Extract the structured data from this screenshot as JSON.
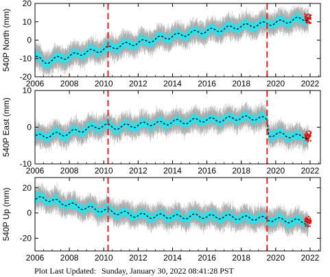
{
  "footer": {
    "label": "Plot Last Updated:",
    "timestamp": "Sunday, January 30, 2022 08:41:28 PST"
  },
  "colors": {
    "data_point": "#22e5f2",
    "error_bar": "#a9a9a9",
    "recent_point": "#e01010",
    "model_line": "#000000",
    "event_line": "#e02020"
  },
  "chart_data": [
    {
      "type": "scatter",
      "ylabel": "540P North (mm)",
      "xlim": [
        2006,
        2022.6
      ],
      "ylim": [
        -20,
        20
      ],
      "xticks": [
        2006,
        2008,
        2010,
        2012,
        2014,
        2016,
        2018,
        2020,
        2022
      ],
      "yticks": [
        -20,
        -10,
        0,
        10,
        20
      ],
      "event_lines": [
        2010.25,
        2019.5
      ],
      "series": [
        {
          "values": [
            [
              2006.0,
              -9
            ],
            [
              2006.5,
              -12
            ],
            [
              2007.0,
              -11
            ],
            [
              2007.5,
              -9.5
            ],
            [
              2008.0,
              -9
            ],
            [
              2008.5,
              -7.5
            ],
            [
              2009.0,
              -6.5
            ],
            [
              2009.5,
              -6
            ],
            [
              2010.0,
              -5
            ],
            [
              2010.5,
              -4
            ],
            [
              2011.0,
              -3
            ],
            [
              2011.5,
              -2
            ],
            [
              2012.0,
              -1.5
            ],
            [
              2012.5,
              -0.5
            ],
            [
              2013.0,
              0.5
            ],
            [
              2013.5,
              1.5
            ],
            [
              2014.0,
              2
            ],
            [
              2014.5,
              3
            ],
            [
              2015.0,
              3.5
            ],
            [
              2015.5,
              4.5
            ],
            [
              2016.0,
              5
            ],
            [
              2016.5,
              5.5
            ],
            [
              2017.0,
              6
            ],
            [
              2017.5,
              7
            ],
            [
              2018.0,
              7.5
            ],
            [
              2018.5,
              8
            ],
            [
              2019.0,
              8.5
            ],
            [
              2019.5,
              9
            ],
            [
              2020.0,
              9.5
            ],
            [
              2020.5,
              10
            ],
            [
              2021.0,
              11
            ],
            [
              2021.5,
              11.5
            ],
            [
              2022.0,
              12
            ]
          ]
        }
      ]
    },
    {
      "type": "scatter",
      "ylabel": "540P East (mm)",
      "xlim": [
        2006,
        2022.6
      ],
      "ylim": [
        -10,
        10
      ],
      "xticks": [
        2006,
        2008,
        2010,
        2012,
        2014,
        2016,
        2018,
        2020,
        2022
      ],
      "yticks": [
        -10,
        0,
        10
      ],
      "event_lines": [
        2010.25,
        2019.5
      ],
      "series": [
        {
          "values": [
            [
              2006.0,
              -2.5
            ],
            [
              2006.5,
              -2.5
            ],
            [
              2007.0,
              -2
            ],
            [
              2007.5,
              -2
            ],
            [
              2008.0,
              -1.5
            ],
            [
              2008.5,
              -1
            ],
            [
              2009.0,
              -0.5
            ],
            [
              2009.5,
              0
            ],
            [
              2010.0,
              0.5
            ],
            [
              2010.5,
              0
            ],
            [
              2011.0,
              0
            ],
            [
              2011.5,
              0.5
            ],
            [
              2012.0,
              0.5
            ],
            [
              2012.5,
              1
            ],
            [
              2013.0,
              1
            ],
            [
              2013.5,
              1
            ],
            [
              2014.0,
              1.5
            ],
            [
              2014.5,
              1.5
            ],
            [
              2015.0,
              1.5
            ],
            [
              2015.5,
              2
            ],
            [
              2016.0,
              2
            ],
            [
              2016.5,
              2
            ],
            [
              2017.0,
              2
            ],
            [
              2017.5,
              2.5
            ],
            [
              2018.0,
              2.5
            ],
            [
              2018.5,
              2.5
            ],
            [
              2019.0,
              2.5
            ],
            [
              2019.5,
              2
            ],
            [
              2019.6,
              -2
            ],
            [
              2020.0,
              -2
            ],
            [
              2020.5,
              -2
            ],
            [
              2021.0,
              -2.5
            ],
            [
              2021.5,
              -2.5
            ],
            [
              2022.0,
              -2.5
            ]
          ]
        }
      ]
    },
    {
      "type": "scatter",
      "ylabel": "540P Up (mm)",
      "xlim": [
        2006,
        2022.6
      ],
      "ylim": [
        -30,
        28
      ],
      "xticks": [
        2006,
        2008,
        2010,
        2012,
        2014,
        2016,
        2018,
        2020,
        2022
      ],
      "yticks": [
        -20,
        0,
        20
      ],
      "event_lines": [
        2010.25,
        2019.5
      ],
      "series": [
        {
          "values": [
            [
              2006.0,
              10
            ],
            [
              2006.5,
              12
            ],
            [
              2007.0,
              10
            ],
            [
              2007.5,
              8
            ],
            [
              2008.0,
              7
            ],
            [
              2008.5,
              5
            ],
            [
              2009.0,
              4
            ],
            [
              2009.5,
              3
            ],
            [
              2010.0,
              2
            ],
            [
              2010.5,
              1
            ],
            [
              2011.0,
              0
            ],
            [
              2011.5,
              -1
            ],
            [
              2012.0,
              -2
            ],
            [
              2012.5,
              -2
            ],
            [
              2013.0,
              -3
            ],
            [
              2013.5,
              -2
            ],
            [
              2014.0,
              -3
            ],
            [
              2014.5,
              -3
            ],
            [
              2015.0,
              -3
            ],
            [
              2015.5,
              -2
            ],
            [
              2016.0,
              -3
            ],
            [
              2016.5,
              -3
            ],
            [
              2017.0,
              -3
            ],
            [
              2017.5,
              -3
            ],
            [
              2018.0,
              -4
            ],
            [
              2018.5,
              -4
            ],
            [
              2019.0,
              -4
            ],
            [
              2019.5,
              -5
            ],
            [
              2020.0,
              -5
            ],
            [
              2020.5,
              -6
            ],
            [
              2021.0,
              -6
            ],
            [
              2021.5,
              -7
            ],
            [
              2022.0,
              -7
            ]
          ]
        }
      ]
    }
  ]
}
